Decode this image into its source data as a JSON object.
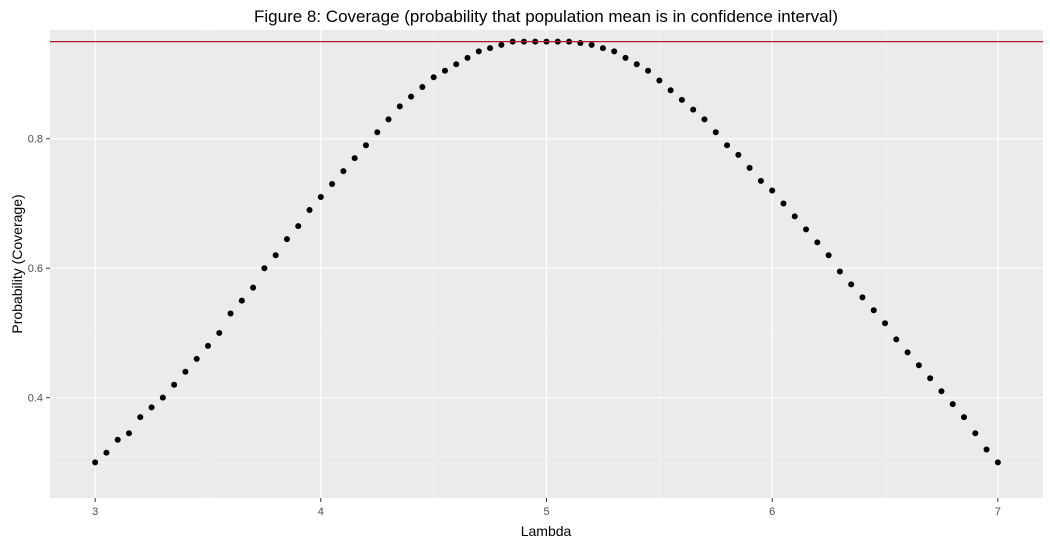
{
  "chart_data": {
    "type": "scatter",
    "title": "Figure 8: Coverage (probability that population mean is in confidence interval)",
    "xlabel": "Lambda",
    "ylabel": "Probability (Coverage)",
    "xlim": [
      2.8,
      7.2
    ],
    "ylim": [
      0.245,
      0.968
    ],
    "x_ticks": [
      3,
      4,
      5,
      6,
      7
    ],
    "x_tick_labels": [
      "3",
      "4",
      "5",
      "6",
      "7"
    ],
    "y_ticks": [
      0.4,
      0.6,
      0.8
    ],
    "y_tick_labels": [
      "0.4",
      "0.6",
      "0.8"
    ],
    "grid": true,
    "reference_line": {
      "y": 0.95,
      "color": "#b2182b"
    },
    "colors": {
      "panel_background": "#ebebeb",
      "grid_major": "#ffffff",
      "grid_minor": "#f3f3f3",
      "points": "#000000",
      "reference_line": "#b2182b"
    },
    "series": [
      {
        "x": [
          3.0,
          3.05,
          3.1,
          3.15,
          3.2,
          3.25,
          3.3,
          3.35,
          3.4,
          3.45,
          3.5,
          3.55,
          3.6,
          3.65,
          3.7,
          3.75,
          3.8,
          3.85,
          3.9,
          3.95,
          4.0,
          4.05,
          4.1,
          4.15,
          4.2,
          4.25,
          4.3,
          4.35,
          4.4,
          4.45,
          4.5,
          4.55,
          4.6,
          4.65,
          4.7,
          4.75,
          4.8,
          4.85,
          4.9,
          4.95,
          5.0,
          5.05,
          5.1,
          5.15,
          5.2,
          5.25,
          5.3,
          5.35,
          5.4,
          5.45,
          5.5,
          5.55,
          5.6,
          5.65,
          5.7,
          5.75,
          5.8,
          5.85,
          5.9,
          5.95,
          6.0,
          6.05,
          6.1,
          6.15,
          6.2,
          6.25,
          6.3,
          6.35,
          6.4,
          6.45,
          6.5,
          6.55,
          6.6,
          6.65,
          6.7,
          6.75,
          6.8,
          6.85,
          6.9,
          6.95,
          7.0
        ],
        "y": [
          0.3,
          0.315,
          0.335,
          0.345,
          0.37,
          0.385,
          0.4,
          0.42,
          0.44,
          0.46,
          0.48,
          0.5,
          0.53,
          0.55,
          0.57,
          0.6,
          0.62,
          0.645,
          0.665,
          0.69,
          0.71,
          0.73,
          0.75,
          0.77,
          0.79,
          0.81,
          0.83,
          0.85,
          0.865,
          0.88,
          0.895,
          0.905,
          0.915,
          0.925,
          0.935,
          0.94,
          0.945,
          0.95,
          0.95,
          0.95,
          0.95,
          0.95,
          0.95,
          0.948,
          0.945,
          0.94,
          0.935,
          0.925,
          0.915,
          0.905,
          0.89,
          0.875,
          0.86,
          0.845,
          0.83,
          0.81,
          0.79,
          0.775,
          0.755,
          0.735,
          0.72,
          0.7,
          0.68,
          0.66,
          0.64,
          0.62,
          0.595,
          0.575,
          0.555,
          0.535,
          0.515,
          0.49,
          0.47,
          0.45,
          0.43,
          0.41,
          0.39,
          0.37,
          0.345,
          0.32,
          0.3
        ]
      }
    ]
  }
}
